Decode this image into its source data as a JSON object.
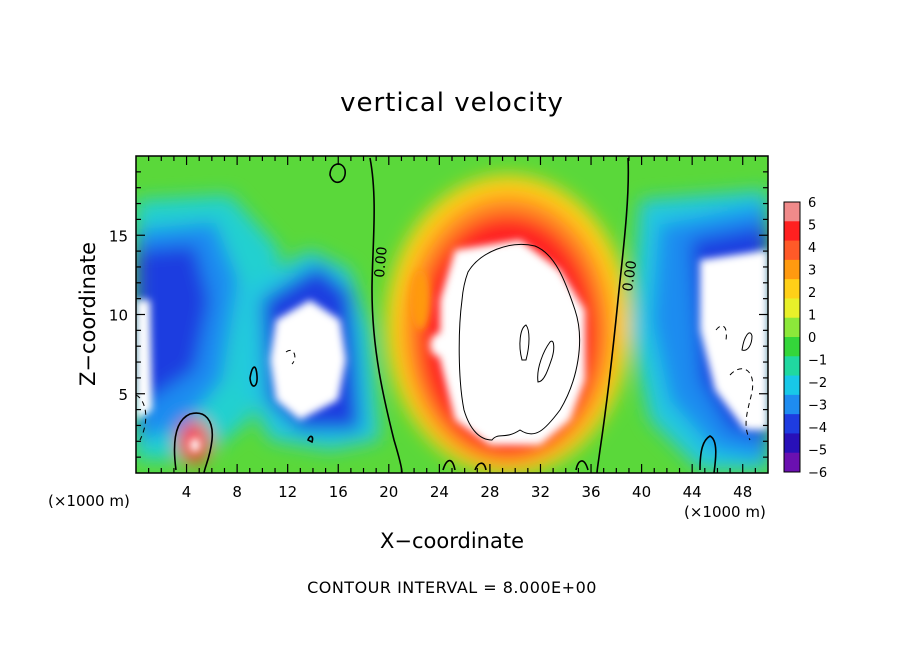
{
  "chart_data": {
    "type": "heatmap",
    "title": "vertical velocity",
    "xlabel": "X−coordinate",
    "ylabel": "Z−coordinate",
    "x_unit_left": "(×1000 m)",
    "x_unit_right": "(×1000 m)",
    "xlim": [
      0,
      50
    ],
    "ylim": [
      0,
      20
    ],
    "x_ticks": [
      4,
      8,
      12,
      16,
      20,
      24,
      28,
      32,
      36,
      40,
      44,
      48
    ],
    "y_ticks": [
      5,
      10,
      15
    ],
    "colorbar": {
      "range": [
        -6,
        6
      ],
      "tick_labels": [
        "6",
        "5",
        "4",
        "3",
        "2",
        "1",
        "0",
        "−1",
        "−2",
        "−3",
        "−4",
        "−5",
        "−6"
      ],
      "colors": [
        "#f08a8a",
        "#ff2020",
        "#ff5a28",
        "#ff9a10",
        "#ffd018",
        "#e8f02a",
        "#8ce83a",
        "#34d63a",
        "#20d8a0",
        "#18c8e8",
        "#1e8cf0",
        "#1e3ce0",
        "#2810b8",
        "#6a10b0"
      ]
    },
    "contour_labels": [
      "0.00",
      "0.00"
    ],
    "footer": "CONTOUR INTERVAL = 8.000E+00"
  }
}
